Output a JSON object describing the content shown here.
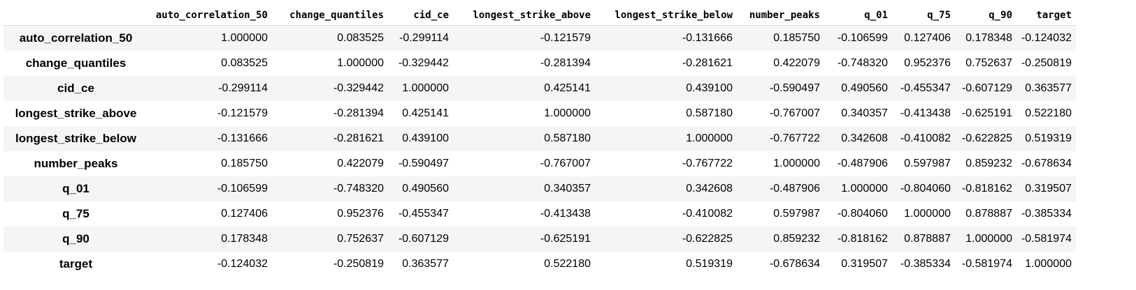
{
  "columns": [
    "auto_correlation_50",
    "change_quantiles",
    "cid_ce",
    "longest_strike_above",
    "longest_strike_below",
    "number_peaks",
    "q_01",
    "q_75",
    "q_90",
    "target"
  ],
  "rows": [
    {
      "label": "auto_correlation_50",
      "values": [
        "1.000000",
        "0.083525",
        "-0.299114",
        "-0.121579",
        "-0.131666",
        "0.185750",
        "-0.106599",
        "0.127406",
        "0.178348",
        "-0.124032"
      ]
    },
    {
      "label": "change_quantiles",
      "values": [
        "0.083525",
        "1.000000",
        "-0.329442",
        "-0.281394",
        "-0.281621",
        "0.422079",
        "-0.748320",
        "0.952376",
        "0.752637",
        "-0.250819"
      ]
    },
    {
      "label": "cid_ce",
      "values": [
        "-0.299114",
        "-0.329442",
        "1.000000",
        "0.425141",
        "0.439100",
        "-0.590497",
        "0.490560",
        "-0.455347",
        "-0.607129",
        "0.363577"
      ]
    },
    {
      "label": "longest_strike_above",
      "values": [
        "-0.121579",
        "-0.281394",
        "0.425141",
        "1.000000",
        "0.587180",
        "-0.767007",
        "0.340357",
        "-0.413438",
        "-0.625191",
        "0.522180"
      ]
    },
    {
      "label": "longest_strike_below",
      "values": [
        "-0.131666",
        "-0.281621",
        "0.439100",
        "0.587180",
        "1.000000",
        "-0.767722",
        "0.342608",
        "-0.410082",
        "-0.622825",
        "0.519319"
      ]
    },
    {
      "label": "number_peaks",
      "values": [
        "0.185750",
        "0.422079",
        "-0.590497",
        "-0.767007",
        "-0.767722",
        "1.000000",
        "-0.487906",
        "0.597987",
        "0.859232",
        "-0.678634"
      ]
    },
    {
      "label": "q_01",
      "values": [
        "-0.106599",
        "-0.748320",
        "0.490560",
        "0.340357",
        "0.342608",
        "-0.487906",
        "1.000000",
        "-0.804060",
        "-0.818162",
        "0.319507"
      ]
    },
    {
      "label": "q_75",
      "values": [
        "0.127406",
        "0.952376",
        "-0.455347",
        "-0.413438",
        "-0.410082",
        "0.597987",
        "-0.804060",
        "1.000000",
        "0.878887",
        "-0.385334"
      ]
    },
    {
      "label": "q_90",
      "values": [
        "0.178348",
        "0.752637",
        "-0.607129",
        "-0.625191",
        "-0.622825",
        "0.859232",
        "-0.818162",
        "0.878887",
        "1.000000",
        "-0.581974"
      ]
    },
    {
      "label": "target",
      "values": [
        "-0.124032",
        "-0.250819",
        "0.363577",
        "0.522180",
        "0.519319",
        "-0.678634",
        "0.319507",
        "-0.385334",
        "-0.581974",
        "1.000000"
      ]
    }
  ],
  "colors": {
    "stripe": "#f5f5f5",
    "background": "#ffffff",
    "header_border": "#d9d9d9",
    "text": "#000000"
  }
}
